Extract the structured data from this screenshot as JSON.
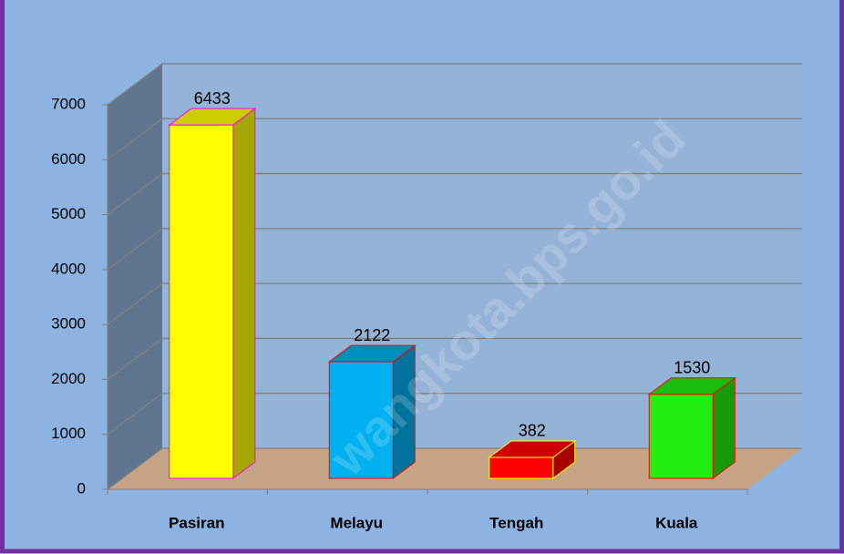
{
  "chart_data": {
    "type": "bar3d",
    "categories": [
      "Pasiran",
      "Melayu",
      "Tengah",
      "Kuala"
    ],
    "values": [
      6433,
      2122,
      382,
      1530
    ],
    "colors": [
      "#ffff00",
      "#00b0f0",
      "#ff0000",
      "#22ee11"
    ],
    "ylim": [
      0,
      7000
    ],
    "yticks": [
      0,
      1000,
      2000,
      3000,
      4000,
      5000,
      6000,
      7000
    ],
    "grid": true,
    "watermark": "wangkota.bps.go.id"
  }
}
